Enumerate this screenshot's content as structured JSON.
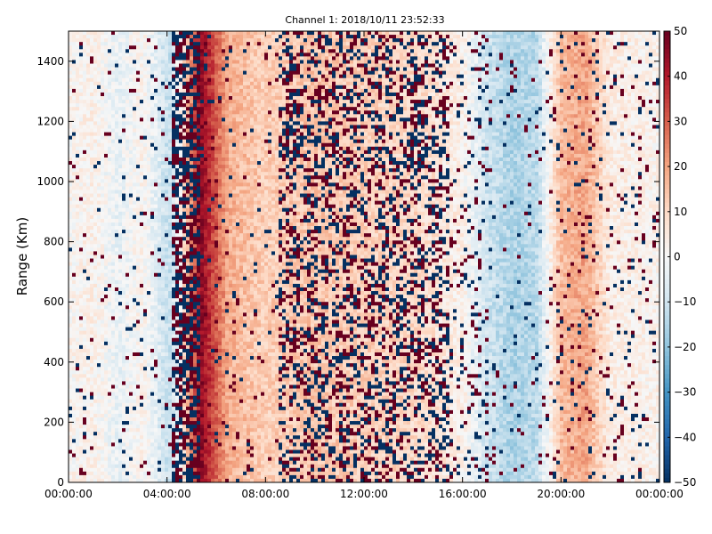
{
  "chart_data": {
    "type": "heatmap",
    "title": "Channel 1: 2018/10/11 23:52:33",
    "xlabel": "",
    "ylabel": "Range (Km)",
    "x_ticks": [
      "00:00:00",
      "04:00:00",
      "08:00:00",
      "12:00:00",
      "16:00:00",
      "20:00:00",
      "00:00:00"
    ],
    "x_range_hours": [
      0,
      24
    ],
    "y_ticks": [
      0,
      200,
      400,
      600,
      800,
      1000,
      1200,
      1400
    ],
    "ylim": [
      0,
      1500
    ],
    "colorbar": {
      "ticks": [
        50,
        40,
        30,
        20,
        10,
        0,
        -10,
        -20,
        -30,
        -40,
        -50
      ],
      "range": [
        -50,
        50
      ],
      "colormap": "RdBu_r"
    },
    "colors": {
      "low": "#053061",
      "mid": "#f7f7f7",
      "high": "#67001f"
    },
    "grid": false,
    "legend": "none",
    "value_profile_by_hour": [
      {
        "h": 0.0,
        "v": 1
      },
      {
        "h": 1.0,
        "v": 3
      },
      {
        "h": 2.0,
        "v": -4
      },
      {
        "h": 3.0,
        "v": 2
      },
      {
        "h": 4.1,
        "v": -12
      },
      {
        "h": 4.5,
        "v": 0
      },
      {
        "h": 5.4,
        "v": 45
      },
      {
        "h": 6.5,
        "v": 18
      },
      {
        "h": 8.0,
        "v": 12
      },
      {
        "h": 10.0,
        "v": 14
      },
      {
        "h": 12.0,
        "v": 12
      },
      {
        "h": 14.0,
        "v": 10
      },
      {
        "h": 16.0,
        "v": 3
      },
      {
        "h": 17.0,
        "v": -10
      },
      {
        "h": 18.0,
        "v": -16
      },
      {
        "h": 19.0,
        "v": -14
      },
      {
        "h": 20.0,
        "v": 16
      },
      {
        "h": 21.0,
        "v": 20
      },
      {
        "h": 22.0,
        "v": 4
      },
      {
        "h": 24.0,
        "v": 2
      }
    ]
  }
}
